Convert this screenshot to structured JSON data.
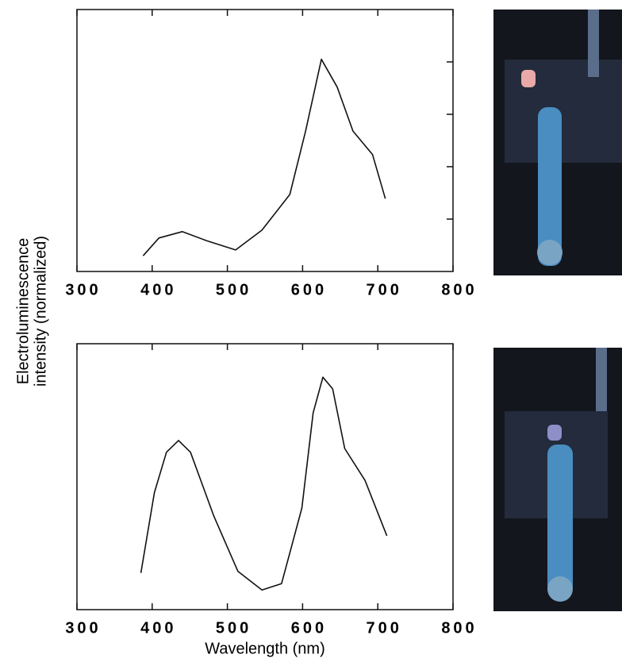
{
  "shared_y_label": [
    "Electroluminescence",
    "intensity (normalized)"
  ],
  "chart_data": [
    {
      "type": "line",
      "color": "#111111",
      "x": [
        388,
        409,
        440,
        472,
        511,
        546,
        583,
        604,
        625,
        646,
        667,
        693,
        710
      ],
      "values": [
        0.3,
        0.64,
        0.76,
        0.59,
        0.41,
        0.79,
        1.47,
        2.68,
        4.05,
        3.52,
        2.68,
        2.23,
        1.39
      ],
      "xlim": [
        300,
        800
      ],
      "xticks": [
        300,
        400,
        500,
        600,
        700,
        800
      ],
      "ylim": [
        0,
        5
      ],
      "yticks": [
        1,
        2,
        3,
        4
      ]
    },
    {
      "type": "line",
      "color": "#111111",
      "x": [
        385,
        403,
        419,
        435,
        451,
        482,
        514,
        546,
        572,
        599,
        614,
        627,
        640,
        656,
        683,
        712
      ],
      "values": [
        0.69,
        2.2,
        2.96,
        3.18,
        2.96,
        1.76,
        0.72,
        0.37,
        0.49,
        1.91,
        3.7,
        4.37,
        4.15,
        3.03,
        2.43,
        1.39
      ],
      "xlim": [
        300,
        800
      ],
      "xticks": [
        300,
        400,
        500,
        600,
        700,
        800
      ],
      "ylim": [
        0,
        5
      ],
      "x_label": "Wavelength (nm)"
    }
  ]
}
